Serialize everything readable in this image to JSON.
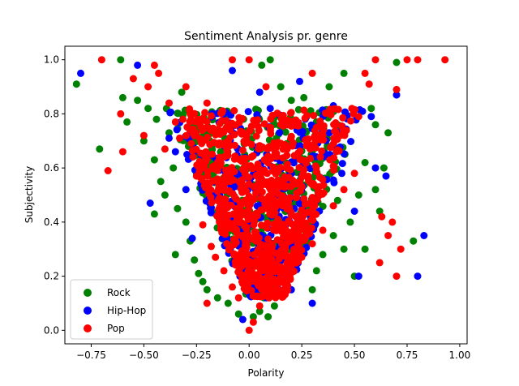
{
  "chart_data": {
    "type": "scatter",
    "title": "Sentiment Analysis pr. genre",
    "xlabel": "Polarity",
    "ylabel": "Subjectivity",
    "xlim": [
      -0.875,
      1.035
    ],
    "ylim": [
      -0.05,
      1.05
    ],
    "xticks": [
      {
        "value": -0.75,
        "label": "−0.75"
      },
      {
        "value": -0.5,
        "label": "−0.50"
      },
      {
        "value": -0.25,
        "label": "−0.25"
      },
      {
        "value": 0.0,
        "label": "0.00"
      },
      {
        "value": 0.25,
        "label": "0.25"
      },
      {
        "value": 0.5,
        "label": "0.50"
      },
      {
        "value": 0.75,
        "label": "0.75"
      },
      {
        "value": 1.0,
        "label": "1.00"
      }
    ],
    "yticks": [
      {
        "value": 0.0,
        "label": "0.0"
      },
      {
        "value": 0.2,
        "label": "0.2"
      },
      {
        "value": 0.4,
        "label": "0.4"
      },
      {
        "value": 0.6,
        "label": "0.6"
      },
      {
        "value": 0.8,
        "label": "0.8"
      },
      {
        "value": 1.0,
        "label": "1.0"
      }
    ],
    "grid": false,
    "legend_position": "lower-left",
    "series": [
      {
        "name": "Rock",
        "color": "#008000",
        "points": [
          [
            -0.82,
            0.91
          ],
          [
            -0.71,
            0.67
          ],
          [
            -0.61,
            1.0
          ],
          [
            -0.6,
            0.86
          ],
          [
            -0.58,
            0.77
          ],
          [
            -0.53,
            0.85
          ],
          [
            -0.5,
            0.7
          ],
          [
            -0.48,
            0.82
          ],
          [
            -0.45,
            0.63
          ],
          [
            -0.44,
            0.78
          ],
          [
            -0.42,
            0.55
          ],
          [
            -0.4,
            0.5
          ],
          [
            -0.38,
            0.73
          ],
          [
            -0.36,
            0.6
          ],
          [
            -0.34,
            0.45
          ],
          [
            -0.32,
            0.88
          ],
          [
            -0.3,
            0.4
          ],
          [
            -0.28,
            0.33
          ],
          [
            -0.26,
            0.26
          ],
          [
            -0.24,
            0.21
          ],
          [
            -0.22,
            0.18
          ],
          [
            -0.2,
            0.15
          ],
          [
            -0.15,
            0.12
          ],
          [
            -0.1,
            0.1
          ],
          [
            -0.05,
            0.06
          ],
          [
            0.02,
            0.05
          ],
          [
            0.05,
            0.07
          ],
          [
            0.09,
            0.05
          ],
          [
            0.12,
            0.09
          ],
          [
            0.06,
            0.98
          ],
          [
            0.1,
            1.0
          ],
          [
            0.15,
            0.9
          ],
          [
            0.2,
            0.85
          ],
          [
            0.32,
            0.22
          ],
          [
            0.35,
            0.28
          ],
          [
            0.4,
            0.35
          ],
          [
            0.45,
            0.95
          ],
          [
            0.5,
            0.2
          ],
          [
            0.52,
            0.5
          ],
          [
            0.55,
            0.62
          ],
          [
            0.58,
            0.82
          ],
          [
            0.6,
            0.76
          ],
          [
            0.62,
            0.44
          ],
          [
            0.64,
            0.6
          ],
          [
            0.66,
            0.73
          ],
          [
            0.7,
            0.99
          ],
          [
            0.78,
            0.33
          ],
          [
            0.45,
            0.3
          ],
          [
            0.48,
            0.4
          ],
          [
            0.55,
            0.3
          ],
          [
            -0.25,
            0.74
          ],
          [
            0.3,
            0.15
          ],
          [
            0.38,
            0.9
          ],
          [
            0.26,
            0.86
          ],
          [
            -0.35,
            0.28
          ],
          [
            0.42,
            0.48
          ],
          [
            -0.45,
            0.43
          ],
          [
            0.6,
            0.52
          ]
        ]
      },
      {
        "name": "Hip-Hop",
        "color": "#0000ff",
        "points": [
          [
            -0.8,
            0.95
          ],
          [
            -0.53,
            0.98
          ],
          [
            -0.47,
            0.47
          ],
          [
            -0.38,
            0.71
          ],
          [
            -0.35,
            0.66
          ],
          [
            -0.3,
            0.52
          ],
          [
            -0.27,
            0.34
          ],
          [
            -0.22,
            0.6
          ],
          [
            -0.12,
            0.78
          ],
          [
            -0.08,
            0.96
          ],
          [
            -0.03,
            0.04
          ],
          [
            0.05,
            0.88
          ],
          [
            0.1,
            0.82
          ],
          [
            0.2,
            0.15
          ],
          [
            0.24,
            0.92
          ],
          [
            0.3,
            0.1
          ],
          [
            0.38,
            0.73
          ],
          [
            0.4,
            0.83
          ],
          [
            0.44,
            0.58
          ],
          [
            0.5,
            0.44
          ],
          [
            0.52,
            0.2
          ],
          [
            0.58,
            0.79
          ],
          [
            0.6,
            0.6
          ],
          [
            0.65,
            0.57
          ],
          [
            0.7,
            0.87
          ],
          [
            0.8,
            0.2
          ],
          [
            0.83,
            0.35
          ],
          [
            0.02,
            0.4
          ],
          [
            -0.15,
            0.5
          ],
          [
            0.15,
            0.55
          ]
        ]
      },
      {
        "name": "Pop",
        "color": "#ff0000",
        "points": [
          [
            -0.7,
            1.0
          ],
          [
            -0.67,
            0.59
          ],
          [
            -0.61,
            0.8
          ],
          [
            -0.6,
            0.66
          ],
          [
            -0.55,
            0.93
          ],
          [
            -0.5,
            0.72
          ],
          [
            -0.48,
            0.9
          ],
          [
            -0.45,
            0.98
          ],
          [
            -0.43,
            0.95
          ],
          [
            -0.4,
            0.67
          ],
          [
            -0.38,
            0.84
          ],
          [
            -0.35,
            0.77
          ],
          [
            -0.33,
            0.71
          ],
          [
            -0.3,
            0.9
          ],
          [
            -0.28,
            0.8
          ],
          [
            -0.25,
            0.57
          ],
          [
            -0.22,
            0.39
          ],
          [
            -0.2,
            0.1
          ],
          [
            -0.18,
            0.31
          ],
          [
            -0.16,
            0.27
          ],
          [
            -0.12,
            0.22
          ],
          [
            -0.08,
            0.16
          ],
          [
            -0.05,
            0.12
          ],
          [
            0.0,
            0.0
          ],
          [
            0.02,
            0.03
          ],
          [
            0.05,
            0.09
          ],
          [
            0.1,
            0.17
          ],
          [
            0.15,
            0.2
          ],
          [
            0.2,
            0.24
          ],
          [
            0.25,
            0.27
          ],
          [
            0.3,
            0.32
          ],
          [
            0.35,
            0.37
          ],
          [
            0.4,
            0.46
          ],
          [
            0.45,
            0.52
          ],
          [
            0.5,
            0.58
          ],
          [
            0.52,
            0.79
          ],
          [
            0.55,
            0.95
          ],
          [
            0.57,
            0.91
          ],
          [
            0.6,
            1.0
          ],
          [
            0.62,
            0.25
          ],
          [
            0.63,
            0.42
          ],
          [
            0.66,
            0.35
          ],
          [
            0.68,
            0.4
          ],
          [
            0.7,
            0.89
          ],
          [
            0.72,
            0.3
          ],
          [
            0.75,
            1.0
          ],
          [
            0.8,
            1.0
          ],
          [
            0.93,
            1.0
          ],
          [
            0.7,
            0.2
          ],
          [
            -0.08,
            1.0
          ],
          [
            0.0,
            1.0
          ],
          [
            0.08,
            0.9
          ],
          [
            -0.2,
            0.84
          ],
          [
            0.3,
            0.95
          ]
        ]
      }
    ]
  },
  "legend": {
    "items": [
      {
        "label": "Rock",
        "color": "#008000"
      },
      {
        "label": "Hip-Hop",
        "color": "#0000ff"
      },
      {
        "label": "Pop",
        "color": "#ff0000"
      }
    ]
  }
}
